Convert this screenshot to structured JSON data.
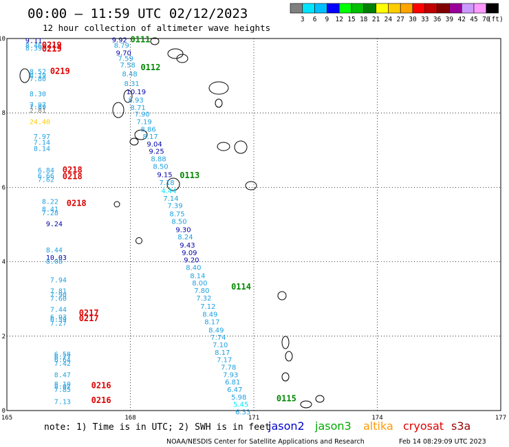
{
  "header": {
    "title": "00:00 – 11:59 UTC 02/12/2023",
    "subtitle": "12 hour collection of altimeter wave heights"
  },
  "colorbar": {
    "ticks": [
      "3",
      "6",
      "9",
      "12",
      "15",
      "18",
      "21",
      "24",
      "27",
      "30",
      "33",
      "36",
      "39",
      "42",
      "45",
      "70"
    ],
    "unit": "(ft)",
    "colors": [
      "#7f7f7f",
      "#00e5ff",
      "#00bfff",
      "#0000ff",
      "#00ff00",
      "#00c000",
      "#008000",
      "#ffff00",
      "#ffcc00",
      "#ffa500",
      "#ff0000",
      "#c00000",
      "#800000",
      "#990099",
      "#cc99ff",
      "#ff99ff",
      "#000000"
    ]
  },
  "axes": {
    "x_ticks": [
      "165",
      "168",
      "171",
      "174",
      "177"
    ],
    "y_ticks": [
      "10",
      "8",
      "6",
      "4",
      "2",
      "0"
    ]
  },
  "footer": {
    "note": "note:  1) Time is in UTC; 2) SWH is in feet",
    "credit": "NOAA/NESDIS Center for Satellite Applications and Research",
    "timestamp": "Feb 14 08:29:09 UTC 2023",
    "legend": [
      {
        "name": "jason2",
        "color": "#0000cc"
      },
      {
        "name": "jason3",
        "color": "#00aa00"
      },
      {
        "name": "altika",
        "color": "#ff9900"
      },
      {
        "name": "cryosat",
        "color": "#dd0000"
      },
      {
        "name": "s3a",
        "color": "#990000"
      }
    ]
  },
  "map_data": {
    "lon_range": [
      165,
      177
    ],
    "lat_range": [
      0,
      10
    ],
    "tracks": [
      {
        "label": "0219",
        "label_color": "#dd0000",
        "label_lon": 165.85,
        "label_lat": 9.75,
        "points": [
          {
            "lon": 165.45,
            "lat": 9.88,
            "v": "9.11",
            "c": "#0000aa"
          },
          {
            "lon": 165.45,
            "lat": 9.75,
            "v": "8.46",
            "c": "#1ea0e0"
          },
          {
            "lon": 165.45,
            "lat": 9.68,
            "v": "8.39",
            "c": "#1ea0e0"
          }
        ]
      },
      {
        "label": "0219",
        "label_color": "#dd0000",
        "label_lon": 165.85,
        "label_lat": 9.65,
        "points": []
      },
      {
        "label": "0219",
        "label_color": "#dd0000",
        "label_lon": 166.05,
        "label_lat": 9.05,
        "points": [
          {
            "lon": 165.55,
            "lat": 9.05,
            "v": "8.52",
            "c": "#1ea0e0"
          },
          {
            "lon": 165.55,
            "lat": 8.95,
            "v": "8.19",
            "c": "#1ea0e0"
          },
          {
            "lon": 165.55,
            "lat": 8.85,
            "v": "7.80",
            "c": "#1ea0e0"
          },
          {
            "lon": 165.55,
            "lat": 8.45,
            "v": "8.30",
            "c": "#1ea0e0"
          },
          {
            "lon": 165.55,
            "lat": 8.15,
            "v": "7.97",
            "c": "#1ea0e0"
          },
          {
            "lon": 165.55,
            "lat": 8.1,
            "v": "7.69",
            "c": "#1ea0e0"
          },
          {
            "lon": 165.55,
            "lat": 8.0,
            "v": "2.81",
            "c": "#7f7f7f"
          },
          {
            "lon": 165.55,
            "lat": 7.7,
            "v": "24.40",
            "c": "#ffcc00"
          },
          {
            "lon": 165.65,
            "lat": 7.3,
            "v": "7.97",
            "c": "#1ea0e0"
          },
          {
            "lon": 165.65,
            "lat": 7.14,
            "v": "7.14",
            "c": "#1ea0e0"
          },
          {
            "lon": 165.65,
            "lat": 6.98,
            "v": "8.14",
            "c": "#1ea0e0"
          }
        ]
      },
      {
        "label": "0218",
        "label_color": "#dd0000",
        "label_lon": 166.35,
        "label_lat": 6.4,
        "points": [
          {
            "lon": 165.75,
            "lat": 6.4,
            "v": "6.84",
            "c": "#1ea0e0"
          },
          {
            "lon": 165.75,
            "lat": 6.25,
            "v": "6.66",
            "c": "#1ea0e0"
          },
          {
            "lon": 165.75,
            "lat": 6.15,
            "v": "7.62",
            "c": "#1ea0e0"
          },
          {
            "lon": 165.85,
            "lat": 5.55,
            "v": "8.22",
            "c": "#1ea0e0"
          },
          {
            "lon": 165.85,
            "lat": 5.35,
            "v": "8.41",
            "c": "#1ea0e0"
          },
          {
            "lon": 165.85,
            "lat": 5.25,
            "v": "7.28",
            "c": "#1ea0e0"
          },
          {
            "lon": 165.95,
            "lat": 4.95,
            "v": "9.24",
            "c": "#0000aa"
          },
          {
            "lon": 165.95,
            "lat": 4.25,
            "v": "8.44",
            "c": "#1ea0e0"
          },
          {
            "lon": 165.95,
            "lat": 4.05,
            "v": "10.03",
            "c": "#0000aa"
          },
          {
            "lon": 165.95,
            "lat": 3.95,
            "v": "8.08",
            "c": "#1ea0e0"
          }
        ]
      },
      {
        "label": "0218",
        "label_color": "#dd0000",
        "label_lon": 166.35,
        "label_lat": 6.22,
        "points": []
      },
      {
        "label": "0218",
        "label_color": "#dd0000",
        "label_lon": 166.45,
        "label_lat": 5.5,
        "points": []
      },
      {
        "label": "0217",
        "label_color": "#dd0000",
        "label_lon": 166.75,
        "label_lat": 2.55,
        "points": [
          {
            "lon": 166.05,
            "lat": 3.45,
            "v": "7.94",
            "c": "#1ea0e0"
          },
          {
            "lon": 166.05,
            "lat": 3.15,
            "v": "7.81",
            "c": "#1ea0e0"
          },
          {
            "lon": 166.05,
            "lat": 3.05,
            "v": "7.90",
            "c": "#1ea0e0"
          },
          {
            "lon": 166.05,
            "lat": 2.95,
            "v": "7.60",
            "c": "#1ea0e0"
          },
          {
            "lon": 166.05,
            "lat": 2.65,
            "v": "7.44",
            "c": "#1ea0e0"
          },
          {
            "lon": 166.05,
            "lat": 2.45,
            "v": "6.93",
            "c": "#1ea0e0"
          },
          {
            "lon": 166.05,
            "lat": 2.38,
            "v": "6.59",
            "c": "#1ea0e0"
          },
          {
            "lon": 166.05,
            "lat": 2.28,
            "v": "7.27",
            "c": "#1ea0e0"
          }
        ]
      },
      {
        "label": "0217",
        "label_color": "#dd0000",
        "label_lon": 166.75,
        "label_lat": 2.4,
        "points": []
      },
      {
        "label": "0216",
        "label_color": "#dd0000",
        "label_lon": 167.05,
        "label_lat": 0.6,
        "points": [
          {
            "lon": 166.15,
            "lat": 1.45,
            "v": "6.58",
            "c": "#1ea0e0"
          },
          {
            "lon": 166.15,
            "lat": 1.38,
            "v": "6.77",
            "c": "#1ea0e0"
          },
          {
            "lon": 166.15,
            "lat": 1.3,
            "v": "6.64",
            "c": "#1ea0e0"
          },
          {
            "lon": 166.15,
            "lat": 1.2,
            "v": "7.42",
            "c": "#1ea0e0"
          },
          {
            "lon": 166.15,
            "lat": 0.9,
            "v": "8.47",
            "c": "#1ea0e0"
          },
          {
            "lon": 166.15,
            "lat": 0.65,
            "v": "8.10",
            "c": "#1ea0e0"
          },
          {
            "lon": 166.15,
            "lat": 0.58,
            "v": "8.02",
            "c": "#1ea0e0"
          },
          {
            "lon": 166.15,
            "lat": 0.5,
            "v": "7.85",
            "c": "#1ea0e0"
          },
          {
            "lon": 166.15,
            "lat": 0.18,
            "v": "7.13",
            "c": "#1ea0e0"
          }
        ]
      },
      {
        "label": "0216",
        "label_color": "#dd0000",
        "label_lon": 167.05,
        "label_lat": 0.2,
        "points": []
      }
    ],
    "passes": [
      {
        "label": "0111",
        "label_color": "#008800",
        "label_lon": 168.0,
        "label_lat": 9.9
      },
      {
        "label": "0112",
        "label_color": "#008800",
        "label_lon": 168.25,
        "label_lat": 9.15
      },
      {
        "label": "0113",
        "label_color": "#008800",
        "label_lon": 169.2,
        "label_lat": 6.25
      },
      {
        "label": "0114",
        "label_color": "#008800",
        "label_lon": 170.45,
        "label_lat": 3.25
      },
      {
        "label": "0115",
        "label_color": "#008800",
        "label_lon": 171.55,
        "label_lat": 0.25
      }
    ],
    "pass_points": [
      {
        "lon": 167.55,
        "lat": 9.9,
        "v": "9.92",
        "c": "#0000aa"
      },
      {
        "lon": 167.6,
        "lat": 9.75,
        "v": "8.79",
        "c": "#1ea0e0"
      },
      {
        "lon": 167.65,
        "lat": 9.55,
        "v": "9.70",
        "c": "#0000aa"
      },
      {
        "lon": 167.7,
        "lat": 9.4,
        "v": "7.59",
        "c": "#1ea0e0"
      },
      {
        "lon": 167.75,
        "lat": 9.22,
        "v": "7.58",
        "c": "#1ea0e0"
      },
      {
        "lon": 167.8,
        "lat": 8.98,
        "v": "8.48",
        "c": "#1ea0e0"
      },
      {
        "lon": 167.85,
        "lat": 8.72,
        "v": "8.31",
        "c": "#1ea0e0"
      },
      {
        "lon": 167.9,
        "lat": 8.5,
        "v": "10.19",
        "c": "#0000aa"
      },
      {
        "lon": 167.95,
        "lat": 8.28,
        "v": "8.93",
        "c": "#1ea0e0"
      },
      {
        "lon": 168.0,
        "lat": 8.08,
        "v": "8.71",
        "c": "#1ea0e0"
      },
      {
        "lon": 168.1,
        "lat": 7.9,
        "v": "7.90",
        "c": "#1ea0e0"
      },
      {
        "lon": 168.15,
        "lat": 7.7,
        "v": "7.19",
        "c": "#1ea0e0"
      },
      {
        "lon": 168.25,
        "lat": 7.5,
        "v": "8.86",
        "c": "#1ea0e0"
      },
      {
        "lon": 168.3,
        "lat": 7.3,
        "v": "8.17",
        "c": "#1ea0e0"
      },
      {
        "lon": 168.4,
        "lat": 7.1,
        "v": "9.04",
        "c": "#0000aa"
      },
      {
        "lon": 168.45,
        "lat": 6.9,
        "v": "9.25",
        "c": "#0000aa"
      },
      {
        "lon": 168.5,
        "lat": 6.7,
        "v": "8.88",
        "c": "#1ea0e0"
      },
      {
        "lon": 168.55,
        "lat": 6.5,
        "v": "8.50",
        "c": "#1ea0e0"
      },
      {
        "lon": 168.65,
        "lat": 6.28,
        "v": "9.15",
        "c": "#0000aa"
      },
      {
        "lon": 168.7,
        "lat": 6.06,
        "v": "7.18",
        "c": "#1ea0e0"
      },
      {
        "lon": 168.75,
        "lat": 5.84,
        "v": "4.44",
        "c": "#00e5ff"
      },
      {
        "lon": 168.8,
        "lat": 5.64,
        "v": "7.14",
        "c": "#1ea0e0"
      },
      {
        "lon": 168.9,
        "lat": 5.44,
        "v": "7.39",
        "c": "#1ea0e0"
      },
      {
        "lon": 168.95,
        "lat": 5.22,
        "v": "8.75",
        "c": "#1ea0e0"
      },
      {
        "lon": 169.0,
        "lat": 5.02,
        "v": "8.50",
        "c": "#1ea0e0"
      },
      {
        "lon": 169.1,
        "lat": 4.8,
        "v": "9.30",
        "c": "#0000aa"
      },
      {
        "lon": 169.15,
        "lat": 4.6,
        "v": "8.24",
        "c": "#1ea0e0"
      },
      {
        "lon": 169.2,
        "lat": 4.38,
        "v": "9.43",
        "c": "#0000aa"
      },
      {
        "lon": 169.25,
        "lat": 4.18,
        "v": "9.09",
        "c": "#0000aa"
      },
      {
        "lon": 169.3,
        "lat": 3.98,
        "v": "9.20",
        "c": "#0000aa"
      },
      {
        "lon": 169.35,
        "lat": 3.78,
        "v": "8.40",
        "c": "#1ea0e0"
      },
      {
        "lon": 169.45,
        "lat": 3.56,
        "v": "8.14",
        "c": "#1ea0e0"
      },
      {
        "lon": 169.5,
        "lat": 3.36,
        "v": "8.00",
        "c": "#1ea0e0"
      },
      {
        "lon": 169.55,
        "lat": 3.16,
        "v": "7.80",
        "c": "#1ea0e0"
      },
      {
        "lon": 169.6,
        "lat": 2.96,
        "v": "7.32",
        "c": "#1ea0e0"
      },
      {
        "lon": 169.7,
        "lat": 2.74,
        "v": "7.12",
        "c": "#1ea0e0"
      },
      {
        "lon": 169.75,
        "lat": 2.52,
        "v": "8.49",
        "c": "#1ea0e0"
      },
      {
        "lon": 169.8,
        "lat": 2.32,
        "v": "8.17",
        "c": "#1ea0e0"
      },
      {
        "lon": 169.9,
        "lat": 2.1,
        "v": "8.49",
        "c": "#1ea0e0"
      },
      {
        "lon": 169.95,
        "lat": 1.9,
        "v": "7.74",
        "c": "#1ea0e0"
      },
      {
        "lon": 170.0,
        "lat": 1.7,
        "v": "7.10",
        "c": "#1ea0e0"
      },
      {
        "lon": 170.05,
        "lat": 1.5,
        "v": "8.17",
        "c": "#1ea0e0"
      },
      {
        "lon": 170.1,
        "lat": 1.3,
        "v": "7.17",
        "c": "#1ea0e0"
      },
      {
        "lon": 170.2,
        "lat": 1.1,
        "v": "7.78",
        "c": "#1ea0e0"
      },
      {
        "lon": 170.25,
        "lat": 0.9,
        "v": "7.93",
        "c": "#1ea0e0"
      },
      {
        "lon": 170.3,
        "lat": 0.7,
        "v": "6.81",
        "c": "#1ea0e0"
      },
      {
        "lon": 170.35,
        "lat": 0.5,
        "v": "6.47",
        "c": "#1ea0e0"
      },
      {
        "lon": 170.45,
        "lat": 0.3,
        "v": "5.98",
        "c": "#1ea0e0"
      },
      {
        "lon": 170.5,
        "lat": 0.1,
        "v": "5.45",
        "c": "#00e5ff"
      },
      {
        "lon": 170.55,
        "lat": -0.1,
        "v": "6.33",
        "c": "#1ea0e0"
      }
    ]
  }
}
